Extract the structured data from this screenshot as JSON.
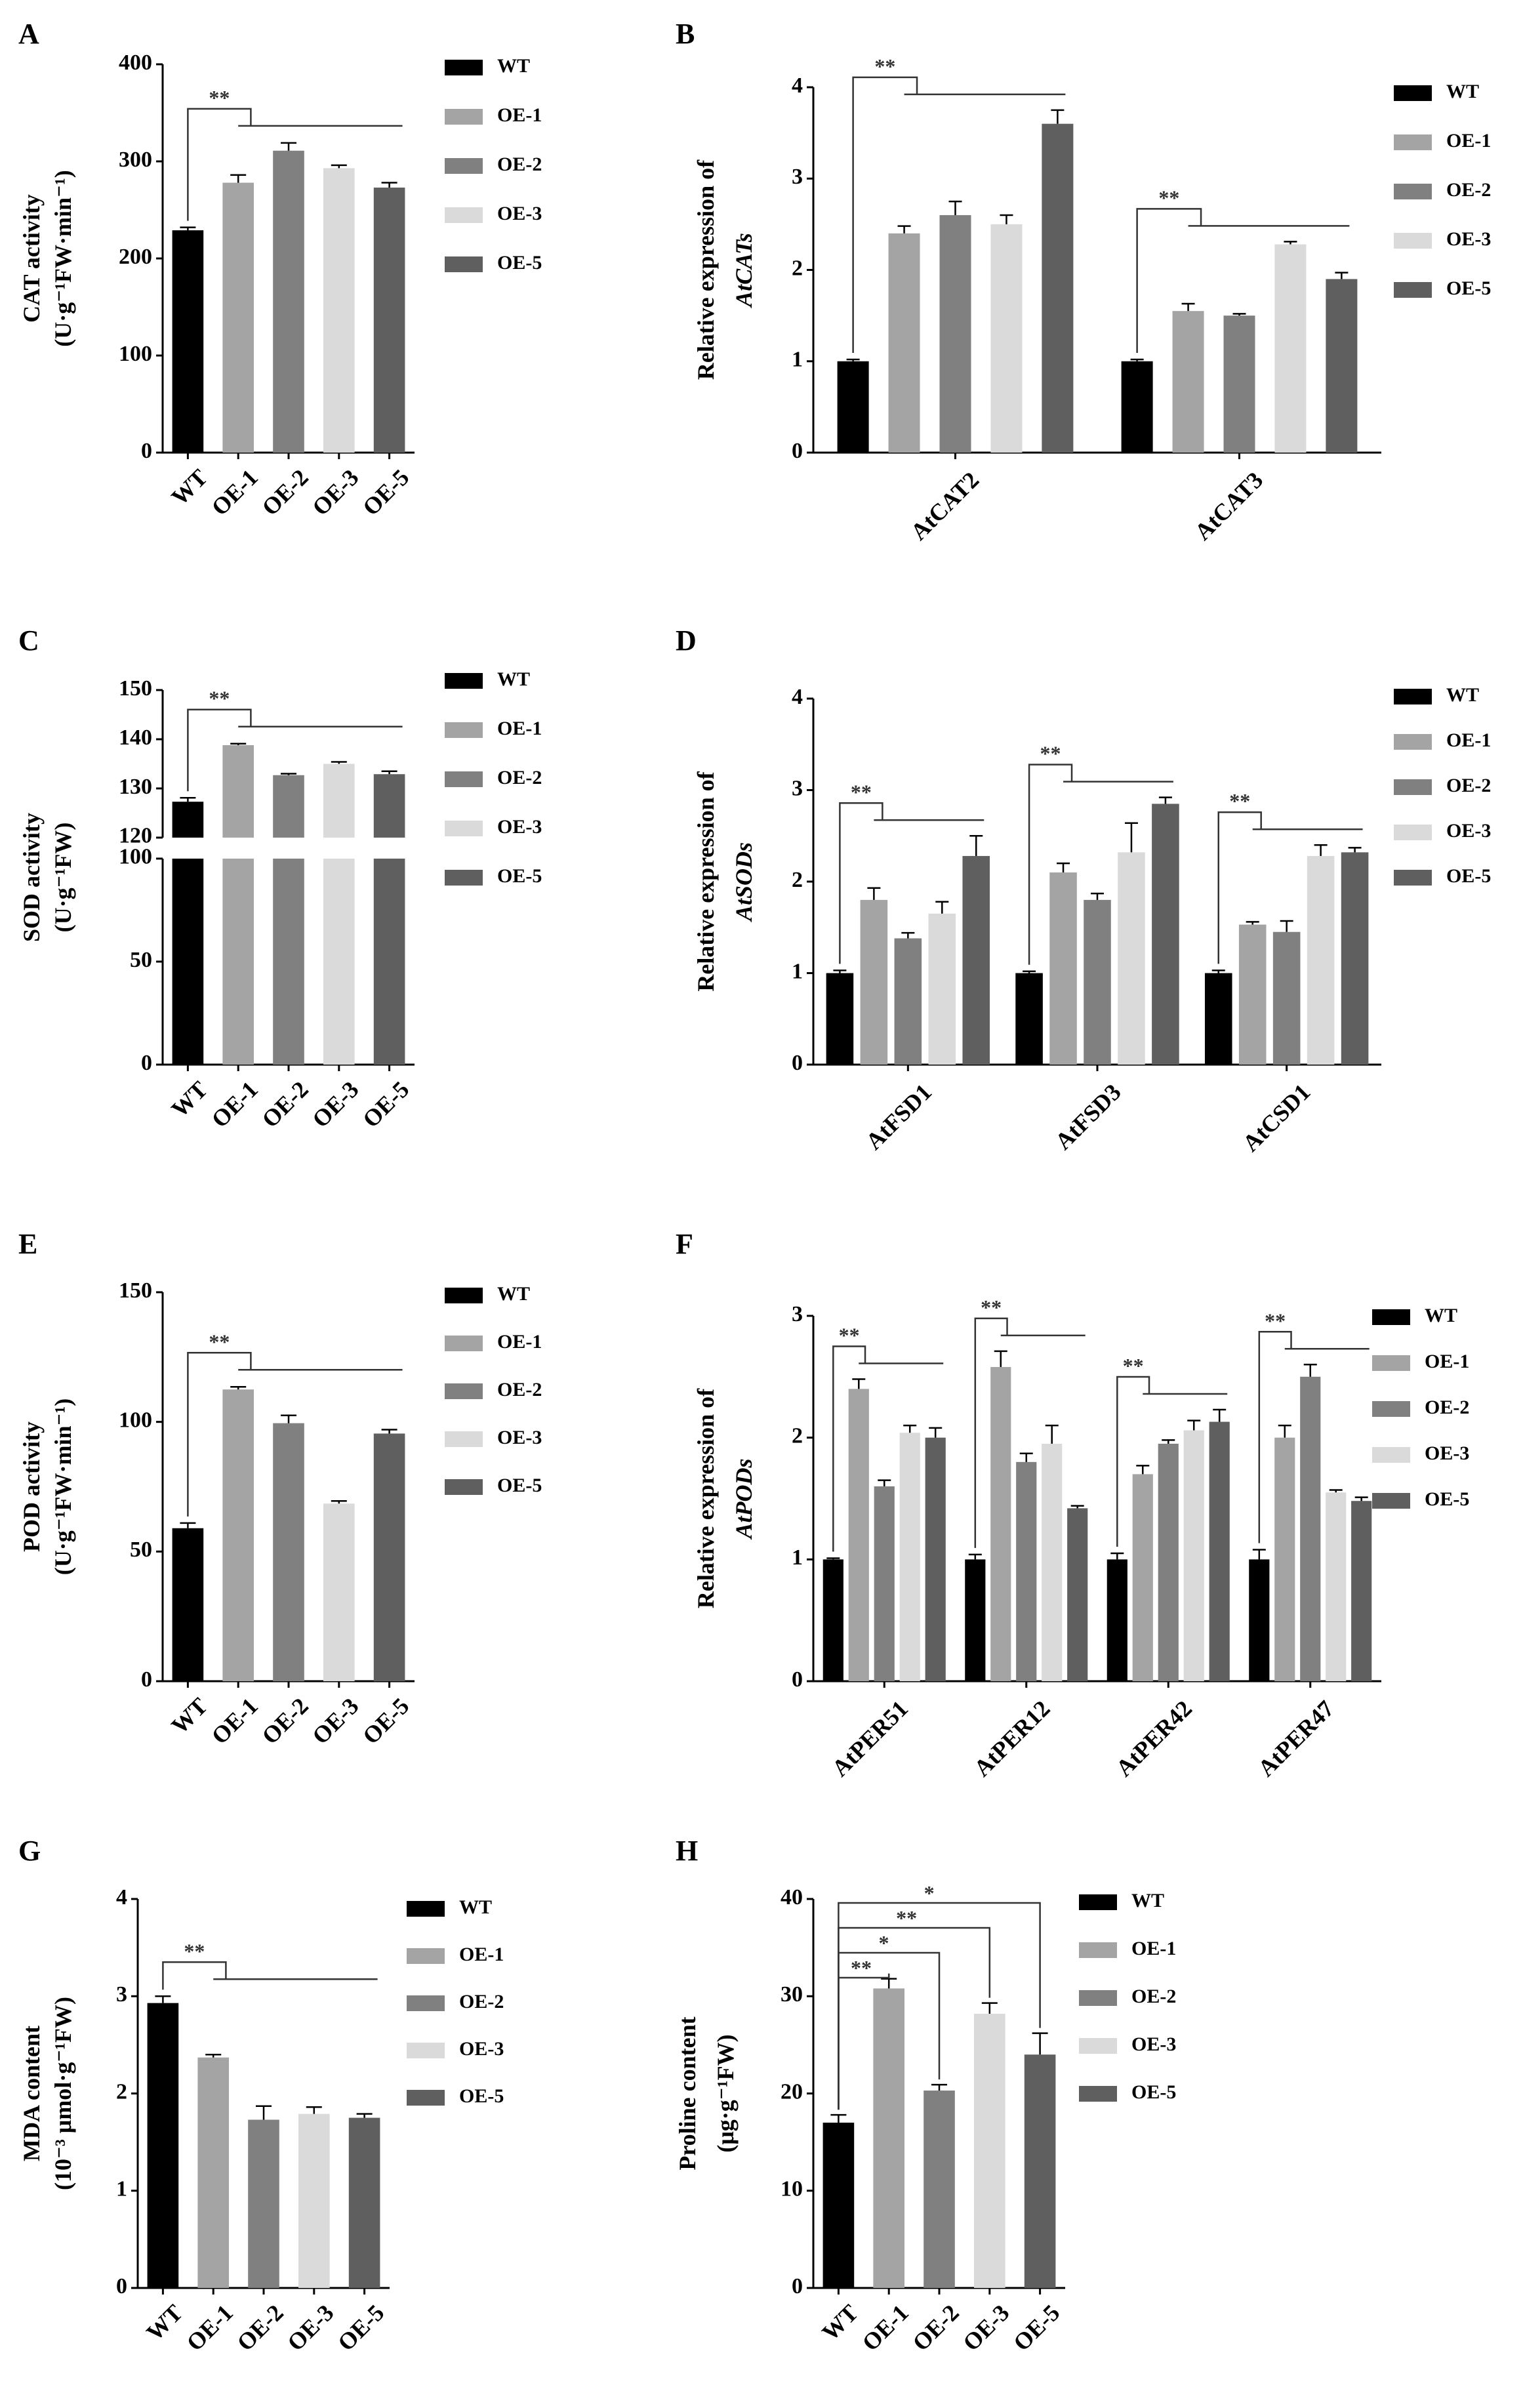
{
  "groups": [
    "WT",
    "OE-1",
    "OE-2",
    "OE-3",
    "OE-5"
  ],
  "colors": {
    "WT": "#000000",
    "OE-1": "#a4a4a4",
    "OE-2": "#808080",
    "OE-3": "#dadada",
    "OE-5": "#5f5f5f"
  },
  "chart_data": [
    {
      "id": "A",
      "type": "bar",
      "layout": "single",
      "panel_label": "A",
      "ylabel_lines": [
        "CAT activity",
        "(U·g⁻¹FW·min⁻¹)"
      ],
      "ylim": [
        0,
        400
      ],
      "yticks": [
        0,
        100,
        200,
        300,
        400
      ],
      "categories": [
        "WT",
        "OE-1",
        "OE-2",
        "OE-3",
        "OE-5"
      ],
      "values": [
        229,
        278,
        311,
        293,
        273
      ],
      "errors": [
        3,
        8,
        8,
        3,
        5
      ],
      "significance": [
        "**"
      ]
    },
    {
      "id": "B",
      "type": "bar",
      "layout": "grouped",
      "panel_label": "B",
      "ylabel_lines": [
        "Relative expression of",
        "AtCATs"
      ],
      "ylim": [
        0,
        4
      ],
      "yticks": [
        0,
        1,
        2,
        3,
        4
      ],
      "categories": [
        "AtCAT2",
        "AtCAT3"
      ],
      "series": [
        {
          "name": "WT",
          "values": [
            1.0,
            1.0
          ],
          "errors": [
            0.02,
            0.02
          ]
        },
        {
          "name": "OE-1",
          "values": [
            2.4,
            1.55
          ],
          "errors": [
            0.08,
            0.08
          ]
        },
        {
          "name": "OE-2",
          "values": [
            2.6,
            1.5
          ],
          "errors": [
            0.15,
            0.02
          ]
        },
        {
          "name": "OE-3",
          "values": [
            2.5,
            2.28
          ],
          "errors": [
            0.1,
            0.03
          ]
        },
        {
          "name": "OE-5",
          "values": [
            3.6,
            1.9
          ],
          "errors": [
            0.15,
            0.07
          ]
        }
      ],
      "significance": [
        "**",
        "**"
      ]
    },
    {
      "id": "C",
      "type": "bar",
      "layout": "single",
      "broken_axis": true,
      "panel_label": "C",
      "ylabel_lines": [
        "SOD activity",
        "(U·g⁻¹FW)"
      ],
      "yticks": [
        0,
        50,
        100,
        120,
        130,
        140,
        150
      ],
      "lower_range": [
        0,
        100
      ],
      "upper_range": [
        120,
        150
      ],
      "categories": [
        "WT",
        "OE-1",
        "OE-2",
        "OE-3",
        "OE-5"
      ],
      "values": [
        127.3,
        138.8,
        132.7,
        135.0,
        132.9
      ],
      "errors": [
        0.8,
        0.3,
        0.3,
        0.4,
        0.6
      ],
      "significance": [
        "**"
      ]
    },
    {
      "id": "D",
      "type": "bar",
      "layout": "grouped",
      "panel_label": "D",
      "ylabel_lines": [
        "Relative expression of",
        "AtSODs"
      ],
      "ylim": [
        0,
        4
      ],
      "yticks": [
        0,
        1,
        2,
        3,
        4
      ],
      "categories": [
        "AtFSD1",
        "AtFSD3",
        "AtCSD1"
      ],
      "series": [
        {
          "name": "WT",
          "values": [
            1.0,
            1.0,
            1.0
          ],
          "errors": [
            0.03,
            0.02,
            0.03
          ]
        },
        {
          "name": "OE-1",
          "values": [
            1.8,
            2.1,
            1.53
          ],
          "errors": [
            0.13,
            0.1,
            0.03
          ]
        },
        {
          "name": "OE-2",
          "values": [
            1.38,
            1.8,
            1.45
          ],
          "errors": [
            0.06,
            0.07,
            0.12
          ]
        },
        {
          "name": "OE-3",
          "values": [
            1.65,
            2.32,
            2.28
          ],
          "errors": [
            0.13,
            0.32,
            0.12
          ]
        },
        {
          "name": "OE-5",
          "values": [
            2.28,
            2.85,
            2.32
          ],
          "errors": [
            0.22,
            0.07,
            0.05
          ]
        }
      ],
      "significance": [
        "**",
        "**",
        "**"
      ]
    },
    {
      "id": "E",
      "type": "bar",
      "layout": "single",
      "panel_label": "E",
      "ylabel_lines": [
        "POD activity",
        "(U·g⁻¹FW·min⁻¹)"
      ],
      "ylim": [
        0,
        150
      ],
      "yticks": [
        0,
        50,
        100,
        150
      ],
      "categories": [
        "WT",
        "OE-1",
        "OE-2",
        "OE-3",
        "OE-5"
      ],
      "values": [
        59,
        112.5,
        99.5,
        68.5,
        95.5
      ],
      "errors": [
        2,
        1,
        3,
        1,
        1.5
      ],
      "significance": [
        "**"
      ]
    },
    {
      "id": "F",
      "type": "bar",
      "layout": "grouped",
      "panel_label": "F",
      "ylabel_lines": [
        "Relative expression of",
        "AtPODs"
      ],
      "ylim": [
        0,
        3
      ],
      "yticks": [
        0,
        1,
        2,
        3
      ],
      "categories": [
        "AtPER51",
        "AtPER12",
        "AtPER42",
        "AtPER47"
      ],
      "series": [
        {
          "name": "WT",
          "values": [
            1.0,
            1.0,
            1.0,
            1.0
          ],
          "errors": [
            0.01,
            0.04,
            0.05,
            0.08
          ]
        },
        {
          "name": "OE-1",
          "values": [
            2.4,
            2.58,
            1.7,
            2.0
          ],
          "errors": [
            0.08,
            0.13,
            0.07,
            0.1
          ]
        },
        {
          "name": "OE-2",
          "values": [
            1.6,
            1.8,
            1.95,
            2.5
          ],
          "errors": [
            0.05,
            0.07,
            0.03,
            0.1
          ]
        },
        {
          "name": "OE-3",
          "values": [
            2.04,
            1.95,
            2.06,
            1.55
          ],
          "errors": [
            0.06,
            0.15,
            0.08,
            0.02
          ]
        },
        {
          "name": "OE-5",
          "values": [
            2.0,
            1.42,
            2.13,
            1.48
          ],
          "errors": [
            0.08,
            0.02,
            0.1,
            0.03
          ]
        }
      ],
      "significance": [
        "**",
        "**",
        "**",
        "**"
      ]
    },
    {
      "id": "G",
      "type": "bar",
      "layout": "single",
      "panel_label": "G",
      "ylabel_lines": [
        "MDA content",
        "(10⁻³ μmol·g⁻¹FW)"
      ],
      "ylim": [
        0,
        4
      ],
      "yticks": [
        0,
        1,
        2,
        3,
        4
      ],
      "categories": [
        "WT",
        "OE-1",
        "OE-2",
        "OE-3",
        "OE-5"
      ],
      "values": [
        2.93,
        2.37,
        1.73,
        1.79,
        1.75
      ],
      "errors": [
        0.07,
        0.03,
        0.14,
        0.07,
        0.04
      ],
      "significance": [
        "**"
      ]
    },
    {
      "id": "H",
      "type": "bar",
      "layout": "single",
      "panel_label": "H",
      "ylabel_lines": [
        "Proline content",
        "(μg·g⁻¹FW)"
      ],
      "ylim": [
        0,
        40
      ],
      "yticks": [
        0,
        10,
        20,
        30,
        40
      ],
      "categories": [
        "WT",
        "OE-1",
        "OE-2",
        "OE-3",
        "OE-5"
      ],
      "values": [
        17,
        30.8,
        20.3,
        28.2,
        24
      ],
      "errors": [
        0.8,
        1.0,
        0.6,
        1.1,
        2.2
      ],
      "significance": [
        "**",
        "*",
        "**",
        "*"
      ]
    }
  ]
}
